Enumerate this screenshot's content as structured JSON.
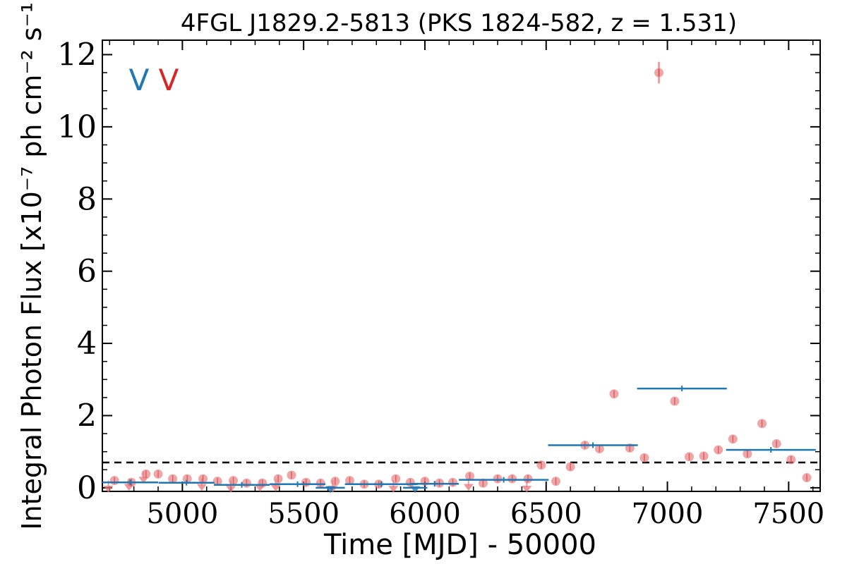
{
  "chart_data": {
    "type": "scatter",
    "title": "4FGL J1829.2-5813 (PKS 1824-582, z = 1.531)",
    "xlabel": "Time [MJD] - 50000",
    "ylabel": "Integral Photon Flux [x10⁻⁷ ph cm⁻² s⁻¹]",
    "xlim": [
      4670,
      7630
    ],
    "ylim": [
      -0.1,
      12.4
    ],
    "xticks": [
      5000,
      5500,
      6000,
      6500,
      7000,
      7500
    ],
    "xtick_labels": [
      "5000",
      "5500",
      "6000",
      "6500",
      "7000",
      "7500"
    ],
    "yticks": [
      0,
      2,
      4,
      6,
      8,
      10,
      12
    ],
    "ytick_labels": [
      "0",
      "2",
      "4",
      "6",
      "8",
      "10",
      "12"
    ],
    "corner_markers": [
      {
        "label": "V",
        "color": "#1f77b4"
      },
      {
        "label": "V",
        "color": "#d62728"
      }
    ],
    "reference_line": {
      "y": 0.7,
      "style": "dashed",
      "color": "#000000"
    },
    "series": [
      {
        "color": "#1f77b4",
        "marker": "horizontal-bar",
        "points": [
          {
            "x": 4785,
            "xerr": 115,
            "y": 0.15
          },
          {
            "x": 5017,
            "xerr": 115,
            "y": 0.14
          },
          {
            "x": 5245,
            "xerr": 115,
            "y": 0.08
          },
          {
            "x": 5475,
            "xerr": 115,
            "y": 0.1
          },
          {
            "x": 5610,
            "xerr": 60,
            "y": 0.0,
            "upper_limit": true
          },
          {
            "x": 5820,
            "xerr": 150,
            "y": 0.1
          },
          {
            "x": 5960,
            "xerr": 50,
            "y": 0.0,
            "upper_limit": true
          },
          {
            "x": 6040,
            "xerr": 100,
            "y": 0.11
          },
          {
            "x": 6325,
            "xerr": 185,
            "y": 0.22
          },
          {
            "x": 6693,
            "xerr": 185,
            "y": 1.18
          },
          {
            "x": 7060,
            "xerr": 185,
            "y": 2.75
          },
          {
            "x": 7427,
            "xerr": 185,
            "y": 1.05
          }
        ]
      },
      {
        "color": "#e8767a",
        "marker": "circle",
        "points": [
          {
            "x": 4695,
            "y": 0.05,
            "upper_limit": true
          },
          {
            "x": 4720,
            "y": 0.2
          },
          {
            "x": 4780,
            "y": 0.1,
            "upper_limit": true
          },
          {
            "x": 4790,
            "y": 0.15
          },
          {
            "x": 4840,
            "y": 0.3,
            "upper_limit": true
          },
          {
            "x": 4850,
            "y": 0.38
          },
          {
            "x": 4900,
            "y": 0.38
          },
          {
            "x": 4960,
            "y": 0.25
          },
          {
            "x": 5020,
            "y": 0.25
          },
          {
            "x": 5080,
            "y": 0.1,
            "upper_limit": true
          },
          {
            "x": 5085,
            "y": 0.25
          },
          {
            "x": 5145,
            "y": 0.18
          },
          {
            "x": 5200,
            "y": 0.05,
            "upper_limit": true
          },
          {
            "x": 5210,
            "y": 0.2
          },
          {
            "x": 5265,
            "y": 0.13
          },
          {
            "x": 5320,
            "y": 0.08,
            "upper_limit": true
          },
          {
            "x": 5330,
            "y": 0.13
          },
          {
            "x": 5385,
            "y": 0.08,
            "upper_limit": true
          },
          {
            "x": 5395,
            "y": 0.25
          },
          {
            "x": 5450,
            "y": 0.35
          },
          {
            "x": 5510,
            "y": 0.15
          },
          {
            "x": 5570,
            "y": 0.13
          },
          {
            "x": 5620,
            "y": 0.05,
            "upper_limit": true
          },
          {
            "x": 5630,
            "y": 0.18
          },
          {
            "x": 5690,
            "y": 0.2
          },
          {
            "x": 5750,
            "y": 0.1
          },
          {
            "x": 5810,
            "y": 0.1
          },
          {
            "x": 5870,
            "y": 0.05,
            "upper_limit": true
          },
          {
            "x": 5880,
            "y": 0.25
          },
          {
            "x": 5940,
            "y": 0.15
          },
          {
            "x": 6000,
            "y": 0.18
          },
          {
            "x": 6060,
            "y": 0.13
          },
          {
            "x": 6115,
            "y": 0.15
          },
          {
            "x": 6180,
            "y": 0.1,
            "upper_limit": true
          },
          {
            "x": 6185,
            "y": 0.32
          },
          {
            "x": 6240,
            "y": 0.13
          },
          {
            "x": 6300,
            "y": 0.25
          },
          {
            "x": 6360,
            "y": 0.25
          },
          {
            "x": 6420,
            "y": 0.05,
            "upper_limit": true
          },
          {
            "x": 6425,
            "y": 0.25
          },
          {
            "x": 6480,
            "y": 0.63
          },
          {
            "x": 6540,
            "y": 0.18
          },
          {
            "x": 6600,
            "y": 0.58
          },
          {
            "x": 6660,
            "y": 1.18
          },
          {
            "x": 6720,
            "y": 1.08
          },
          {
            "x": 6780,
            "y": 2.6
          },
          {
            "x": 6845,
            "y": 1.1
          },
          {
            "x": 6905,
            "y": 0.83
          },
          {
            "x": 6965,
            "y": 11.5,
            "yerr": 0.3
          },
          {
            "x": 7030,
            "y": 2.4
          },
          {
            "x": 7090,
            "y": 0.86
          },
          {
            "x": 7150,
            "y": 0.88
          },
          {
            "x": 7210,
            "y": 1.05
          },
          {
            "x": 7270,
            "y": 1.35
          },
          {
            "x": 7330,
            "y": 0.94
          },
          {
            "x": 7390,
            "y": 1.78
          },
          {
            "x": 7450,
            "y": 1.22
          },
          {
            "x": 7510,
            "y": 0.78
          },
          {
            "x": 7575,
            "y": 0.28
          }
        ]
      }
    ]
  }
}
